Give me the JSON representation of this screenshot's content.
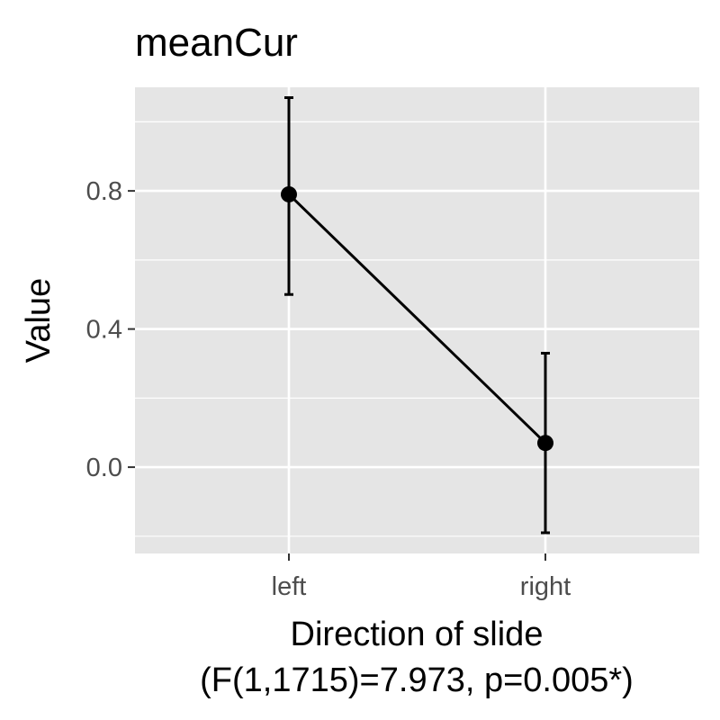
{
  "chart_data": {
    "type": "line",
    "title": "meanCur",
    "xlabel": "Direction of slide",
    "xlabel_note": "(F(1,1715)=7.973, p=0.005*)",
    "ylabel": "Value",
    "categories": [
      "left",
      "right"
    ],
    "series": [
      {
        "values": [
          0.79,
          0.07
        ],
        "error_low": [
          0.5,
          -0.19
        ],
        "error_high": [
          1.07,
          0.33
        ]
      }
    ],
    "ylim": [
      -0.25,
      1.1
    ],
    "yticks": [
      0.0,
      0.4,
      0.8
    ],
    "ytick_labels": [
      "0.0",
      "0.4",
      "0.8"
    ],
    "grid": true,
    "colors": {
      "panel": "#e5e5e5",
      "grid": "#ffffff",
      "series": "#000000",
      "tick_text": "#4d4d4d",
      "tick_mark": "#333333"
    }
  }
}
